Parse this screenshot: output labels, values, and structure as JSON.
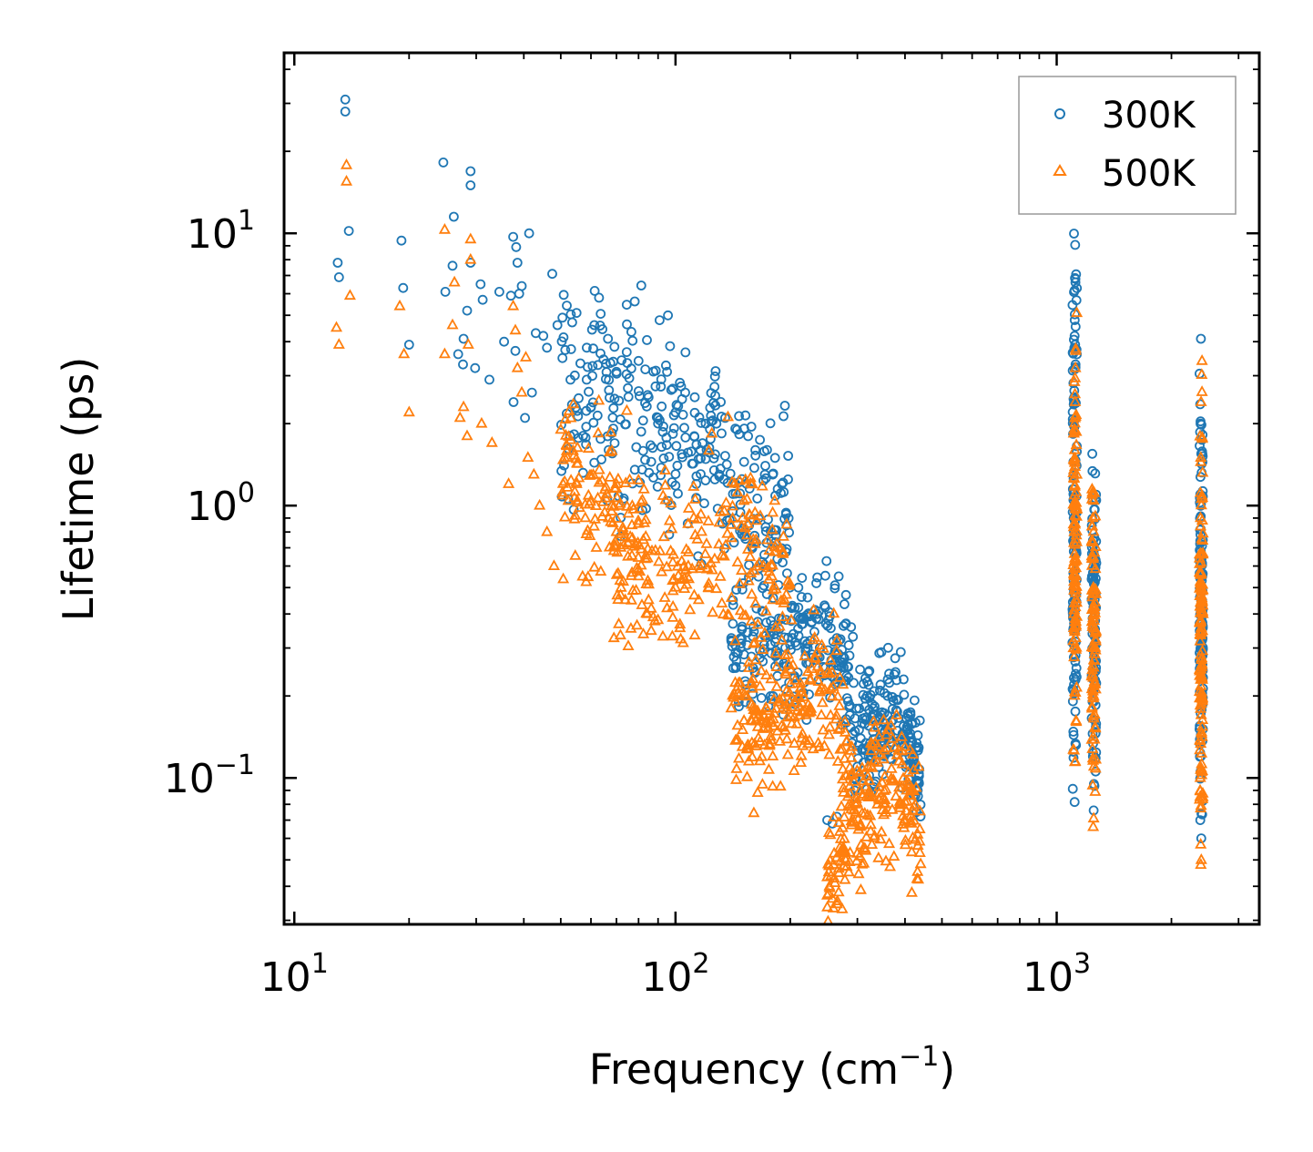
{
  "chart_data": {
    "type": "scatter",
    "title": "",
    "xlabel": "Frequency (cm",
    "xlabel_sup": "−1",
    "xlabel_close": ")",
    "ylabel": "Lifetime (ps)",
    "xscale": "log",
    "yscale": "log",
    "xlim": [
      9.4,
      3400
    ],
    "ylim": [
      0.029,
      46
    ],
    "x_ticks": [
      {
        "value": 10,
        "base": "10",
        "exp": "1"
      },
      {
        "value": 100,
        "base": "10",
        "exp": "2"
      },
      {
        "value": 1000,
        "base": "10",
        "exp": "3"
      }
    ],
    "y_ticks": [
      {
        "value": 0.1,
        "base": "10",
        "exp": "−1"
      },
      {
        "value": 1,
        "base": "10",
        "exp": "0"
      },
      {
        "value": 10,
        "base": "10",
        "exp": "1"
      }
    ],
    "legend_position": "top-right",
    "series": [
      {
        "name": "300K",
        "color": "#1f77b4",
        "marker": "circle",
        "points": [
          [
            13.6,
            31
          ],
          [
            13.6,
            28
          ],
          [
            13.0,
            7.8
          ],
          [
            13.1,
            6.9
          ],
          [
            13.9,
            10.2
          ],
          [
            19.1,
            9.4
          ],
          [
            19.3,
            6.3
          ],
          [
            20.0,
            3.9
          ],
          [
            24.6,
            18.2
          ],
          [
            26.2,
            11.5
          ],
          [
            26.0,
            7.6
          ],
          [
            24.9,
            6.1
          ],
          [
            27.8,
            4.1
          ],
          [
            28.4,
            5.2
          ],
          [
            29.0,
            7.8
          ],
          [
            29.0,
            16.9
          ],
          [
            29.0,
            15.0
          ],
          [
            30.8,
            6.5
          ],
          [
            31.2,
            5.7
          ],
          [
            26.9,
            3.6
          ],
          [
            27.7,
            3.3
          ],
          [
            29.8,
            3.2
          ],
          [
            32.5,
            2.9
          ],
          [
            34.5,
            6.1
          ],
          [
            35.5,
            4.0
          ],
          [
            37.0,
            5.9
          ],
          [
            37.5,
            9.7
          ],
          [
            38.2,
            8.9
          ],
          [
            38.5,
            7.8
          ],
          [
            38.9,
            6.0
          ],
          [
            39.5,
            6.4
          ],
          [
            38.0,
            3.7
          ],
          [
            37.6,
            2.4
          ],
          [
            40.3,
            2.1
          ],
          [
            41.3,
            10.0
          ],
          [
            42.0,
            2.6
          ],
          [
            43.0,
            4.3
          ],
          [
            45.0,
            4.2
          ],
          [
            46.0,
            3.8
          ],
          [
            47.5,
            7.1
          ],
          [
            49.0,
            4.6
          ],
          [
            50.5,
            4.9
          ],
          [
            53.0,
            2.9
          ],
          [
            55.0,
            5.1
          ],
          [
            58.5,
            3.8
          ],
          [
            60.0,
            2.3
          ],
          [
            63.0,
            5.8
          ],
          [
            66.5,
            4.1
          ],
          [
            70.0,
            3.1
          ],
          [
            75.0,
            2.7
          ],
          [
            80.0,
            3.4
          ],
          [
            85.0,
            2.5
          ],
          [
            90.0,
            2.1
          ],
          [
            95.0,
            3.1
          ],
          [
            100.0,
            2.2
          ],
          [
            106.0,
            2.6
          ],
          [
            112.0,
            1.8
          ],
          [
            120.0,
            2.0
          ],
          [
            128.0,
            2.0
          ],
          [
            135.0,
            2.1
          ],
          [
            145.0,
            1.9
          ],
          [
            155.0,
            1.8
          ],
          [
            162.0,
            1.6
          ],
          [
            172.0,
            1.4
          ],
          [
            180.0,
            1.3
          ],
          [
            190.0,
            1.2
          ],
          [
            198.0,
            0.9
          ],
          [
            210.0,
            0.5
          ],
          [
            222.0,
            0.46
          ],
          [
            235.0,
            0.4
          ],
          [
            246.0,
            0.43
          ],
          [
            252.0,
            0.38
          ],
          [
            262.0,
            0.51
          ],
          [
            268.0,
            0.55
          ],
          [
            280.0,
            0.47
          ],
          [
            292.0,
            0.33
          ],
          [
            305.0,
            0.25
          ],
          [
            318.0,
            0.2
          ],
          [
            330.0,
            0.18
          ],
          [
            345.0,
            0.22
          ],
          [
            360.0,
            0.2
          ],
          [
            375.0,
            0.24
          ],
          [
            390.0,
            0.29
          ],
          [
            405.0,
            0.15
          ],
          [
            420.0,
            0.12
          ],
          [
            432.0,
            0.09
          ],
          [
            140.0,
            0.32
          ],
          [
            148.0,
            0.3
          ],
          [
            250.0,
            0.07
          ],
          [
            258.0,
            0.068
          ],
          [
            265.0,
            0.072
          ],
          [
            300.0,
            0.11
          ],
          [
            320.0,
            0.13
          ],
          [
            1120.0,
            6.8
          ],
          [
            1120.0,
            6.6
          ],
          [
            1115.0,
            4.8
          ],
          [
            1118.0,
            3.9
          ],
          [
            1112.0,
            2.5
          ],
          [
            1108.0,
            0.9
          ],
          [
            1105.0,
            0.35
          ],
          [
            1110.0,
            0.22
          ],
          [
            1240.0,
            1.55
          ],
          [
            1248.0,
            0.6
          ],
          [
            1250.0,
            0.3
          ],
          [
            1252.0,
            0.095
          ],
          [
            1250.0,
            0.076
          ],
          [
            1245.0,
            0.12
          ],
          [
            2390.0,
            4.1
          ],
          [
            2385.0,
            2.0
          ],
          [
            2380.0,
            1.1
          ],
          [
            2395.0,
            0.6
          ],
          [
            2392.0,
            0.3
          ],
          [
            2388.0,
            0.12
          ],
          [
            2380.0,
            0.07
          ],
          [
            2395.0,
            0.06
          ]
        ],
        "bands": [
          {
            "x_range": [
              50,
              200
            ],
            "x_fn_center": [
              [
                50,
                2.8
              ],
              [
                100,
                1.7
              ],
              [
                130,
                1.6
              ],
              [
                160,
                1.1
              ],
              [
                200,
                0.8
              ]
            ],
            "spread": 0.55,
            "count": 320
          },
          {
            "x_range": [
              140,
              290
            ],
            "x_fn_center": [
              [
                140,
                0.28
              ],
              [
                180,
                0.3
              ],
              [
                220,
                0.3
              ],
              [
                260,
                0.33
              ],
              [
                290,
                0.22
              ]
            ],
            "spread": 0.35,
            "count": 220
          },
          {
            "x_range": [
              290,
              440
            ],
            "x_fn_center": [
              [
                290,
                0.12
              ],
              [
                330,
                0.15
              ],
              [
                370,
                0.17
              ],
              [
                400,
                0.16
              ],
              [
                440,
                0.1
              ]
            ],
            "spread": 0.3,
            "count": 200
          },
          {
            "x_range": [
              1100,
              1130
            ],
            "x_fn_center": [
              [
                1100,
                0.8
              ],
              [
                1130,
                1.2
              ]
            ],
            "spread": 1.3,
            "count": 120
          },
          {
            "x_range": [
              1235,
              1270
            ],
            "x_fn_center": [
              [
                1235,
                0.5
              ],
              [
                1270,
                0.35
              ]
            ],
            "spread": 0.9,
            "count": 100
          },
          {
            "x_range": [
              2370,
              2420
            ],
            "x_fn_center": [
              [
                2370,
                0.4
              ],
              [
                2420,
                0.5
              ]
            ],
            "spread": 1.1,
            "count": 130
          }
        ]
      },
      {
        "name": "500K",
        "color": "#ff7f0e",
        "marker": "triangle",
        "points": [
          [
            13.7,
            17.8
          ],
          [
            13.7,
            15.5
          ],
          [
            12.9,
            4.5
          ],
          [
            13.1,
            3.9
          ],
          [
            14.0,
            5.9
          ],
          [
            18.9,
            5.4
          ],
          [
            19.4,
            3.6
          ],
          [
            20.0,
            2.2
          ],
          [
            24.8,
            10.3
          ],
          [
            26.3,
            6.6
          ],
          [
            26.0,
            4.6
          ],
          [
            24.8,
            3.6
          ],
          [
            27.8,
            2.3
          ],
          [
            28.6,
            3.9
          ],
          [
            29.0,
            9.5
          ],
          [
            29.0,
            8.0
          ],
          [
            27.2,
            2.1
          ],
          [
            28.4,
            1.8
          ],
          [
            31.0,
            2.0
          ],
          [
            33.0,
            1.7
          ],
          [
            36.5,
            1.2
          ],
          [
            37.5,
            5.4
          ],
          [
            38.0,
            4.4
          ],
          [
            38.5,
            3.2
          ],
          [
            39.5,
            2.6
          ],
          [
            40.5,
            3.5
          ],
          [
            41.0,
            1.5
          ],
          [
            42.5,
            1.3
          ],
          [
            44.0,
            1.0
          ],
          [
            46.0,
            0.8
          ],
          [
            48.0,
            0.6
          ],
          [
            50.0,
            1.9
          ],
          [
            52.0,
            1.5
          ],
          [
            55.0,
            1.2
          ],
          [
            58.0,
            0.9
          ],
          [
            62.0,
            0.7
          ],
          [
            66.0,
            1.1
          ],
          [
            70.0,
            0.8
          ],
          [
            75.0,
            0.65
          ],
          [
            80.0,
            0.55
          ],
          [
            85.0,
            0.45
          ],
          [
            90.0,
            0.38
          ],
          [
            95.0,
            0.42
          ],
          [
            100.0,
            0.5
          ],
          [
            108.0,
            0.6
          ],
          [
            115.0,
            0.45
          ],
          [
            122.0,
            0.5
          ],
          [
            130.0,
            0.72
          ],
          [
            140.0,
            0.85
          ],
          [
            150.0,
            0.9
          ],
          [
            160.0,
            0.75
          ],
          [
            170.0,
            0.6
          ],
          [
            180.0,
            0.45
          ],
          [
            190.0,
            0.32
          ],
          [
            200.0,
            0.25
          ],
          [
            210.0,
            0.2
          ],
          [
            225.0,
            0.18
          ],
          [
            240.0,
            0.24
          ],
          [
            255.0,
            0.27
          ],
          [
            265.0,
            0.32
          ],
          [
            275.0,
            0.22
          ],
          [
            290.0,
            0.13
          ],
          [
            305.0,
            0.09
          ],
          [
            320.0,
            0.11
          ],
          [
            340.0,
            0.13
          ],
          [
            360.0,
            0.15
          ],
          [
            380.0,
            0.17
          ],
          [
            400.0,
            0.13
          ],
          [
            420.0,
            0.09
          ],
          [
            432.0,
            0.062
          ],
          [
            140.0,
            0.18
          ],
          [
            150.0,
            0.15
          ],
          [
            165.0,
            0.14
          ],
          [
            180.0,
            0.12
          ],
          [
            250.0,
            0.037
          ],
          [
            258.0,
            0.036
          ],
          [
            268.0,
            0.038
          ],
          [
            285.0,
            0.045
          ],
          [
            1122.0,
            3.7
          ],
          [
            1120.0,
            3.2
          ],
          [
            1118.0,
            2.4
          ],
          [
            1115.0,
            1.6
          ],
          [
            1112.0,
            0.8
          ],
          [
            1110.0,
            0.4
          ],
          [
            1108.0,
            0.3
          ],
          [
            1245.0,
            0.9
          ],
          [
            1248.0,
            0.5
          ],
          [
            1250.0,
            0.3
          ],
          [
            1252.0,
            0.11
          ],
          [
            1250.0,
            0.071
          ],
          [
            2392.0,
            2.4
          ],
          [
            2388.0,
            1.5
          ],
          [
            2385.0,
            0.9
          ],
          [
            2395.0,
            0.5
          ],
          [
            2390.0,
            0.25
          ],
          [
            2380.0,
            0.1
          ],
          [
            2395.0,
            0.05
          ],
          [
            2388.0,
            0.048
          ]
        ],
        "bands": [
          {
            "x_range": [
              50,
              200
            ],
            "x_fn_center": [
              [
                50,
                1.3
              ],
              [
                80,
                0.7
              ],
              [
                100,
                0.6
              ],
              [
                130,
                0.8
              ],
              [
                160,
                0.7
              ],
              [
                200,
                0.45
              ]
            ],
            "spread": 0.45,
            "count": 340
          },
          {
            "x_range": [
              140,
              290
            ],
            "x_fn_center": [
              [
                140,
                0.15
              ],
              [
                180,
                0.16
              ],
              [
                220,
                0.18
              ],
              [
                260,
                0.2
              ],
              [
                290,
                0.09
              ]
            ],
            "spread": 0.35,
            "count": 220
          },
          {
            "x_range": [
              250,
              440
            ],
            "x_fn_center": [
              [
                250,
                0.045
              ],
              [
                300,
                0.07
              ],
              [
                340,
                0.09
              ],
              [
                380,
                0.1
              ],
              [
                440,
                0.065
              ]
            ],
            "spread": 0.35,
            "count": 220
          },
          {
            "x_range": [
              1105,
              1130
            ],
            "x_fn_center": [
              [
                1105,
                0.6
              ],
              [
                1130,
                0.8
              ]
            ],
            "spread": 1.0,
            "count": 110
          },
          {
            "x_range": [
              1235,
              1268
            ],
            "x_fn_center": [
              [
                1235,
                0.4
              ],
              [
                1268,
                0.3
              ]
            ],
            "spread": 0.8,
            "count": 90
          },
          {
            "x_range": [
              2370,
              2420
            ],
            "x_fn_center": [
              [
                2370,
                0.3
              ],
              [
                2420,
                0.35
              ]
            ],
            "spread": 1.0,
            "count": 130
          }
        ]
      }
    ]
  }
}
